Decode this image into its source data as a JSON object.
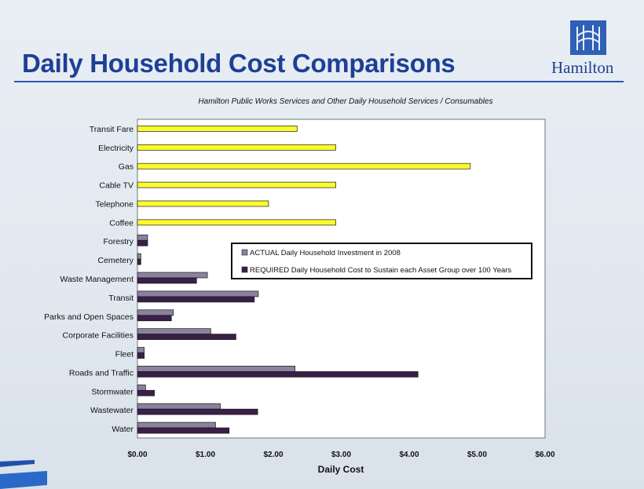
{
  "slide": {
    "title": "Daily Household Cost Comparisons",
    "logo_text": "Hamilton",
    "colors": {
      "title": "#1d3f96",
      "rule": "#2d56b3",
      "logo": "#2f5fb6"
    }
  },
  "chart_data": {
    "type": "bar",
    "orientation": "horizontal",
    "title": "Hamilton Public Works Services and Other Daily Household Services / Consumables",
    "xlabel": "Daily Cost",
    "ylabel": "",
    "xlim": [
      0,
      6
    ],
    "x_ticks": [
      "$0.00",
      "$1.00",
      "$2.00",
      "$3.00",
      "$4.00",
      "$5.00",
      "$6.00"
    ],
    "grid": false,
    "legend_position": "center-right",
    "categories": [
      "Transit Fare",
      "Electricity",
      "Gas",
      "Cable TV",
      "Telephone",
      "Coffee",
      "Forestry",
      "Cemetery",
      "Waste Management",
      "Transit",
      "Parks and Open Spaces",
      "Corporate Facilities",
      "Fleet",
      "Roads and Traffic",
      "Stormwater",
      "Wastewater",
      "Water"
    ],
    "series": [
      {
        "name": "",
        "color": "#fcfc2c",
        "values": [
          2.35,
          2.92,
          4.9,
          2.92,
          1.93,
          2.92,
          null,
          null,
          null,
          null,
          null,
          null,
          null,
          null,
          null,
          null,
          null
        ]
      },
      {
        "name": "ACTUAL Daily Household Investment in 2008",
        "color": "#8a829e",
        "values": [
          null,
          null,
          null,
          null,
          null,
          null,
          0.15,
          0.05,
          1.03,
          1.78,
          0.53,
          1.08,
          0.1,
          2.32,
          0.12,
          1.22,
          1.15
        ]
      },
      {
        "name": "REQUIRED Daily Household Cost to Sustain each Asset Group over 100 Years",
        "color": "#3a1f48",
        "values": [
          null,
          null,
          null,
          null,
          null,
          null,
          0.15,
          0.05,
          0.87,
          1.72,
          0.5,
          1.45,
          0.1,
          4.13,
          0.25,
          1.77,
          1.35
        ]
      }
    ]
  }
}
